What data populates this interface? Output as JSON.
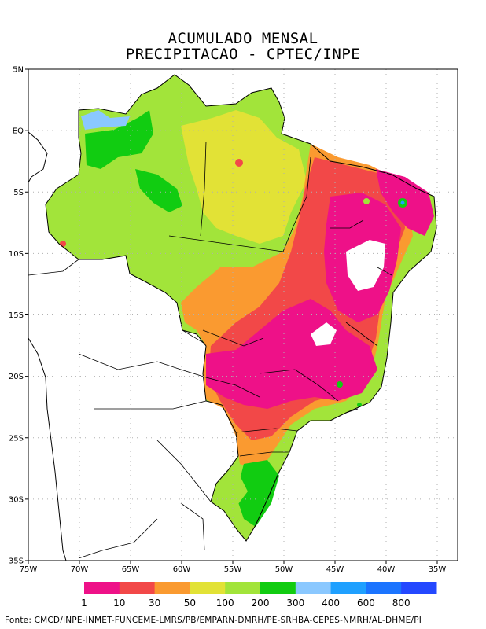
{
  "title": {
    "line1": "ACUMULADO MENSAL",
    "line2": "PRECIPITACAO - CPTEC/INPE"
  },
  "map": {
    "lon_range": [
      -75,
      -33
    ],
    "lat_range": [
      -35,
      5
    ],
    "lat_ticks": [
      {
        "value": 5,
        "label": "5N"
      },
      {
        "value": 0,
        "label": "EQ"
      },
      {
        "value": -5,
        "label": "5S"
      },
      {
        "value": -10,
        "label": "10S"
      },
      {
        "value": -15,
        "label": "15S"
      },
      {
        "value": -20,
        "label": "20S"
      },
      {
        "value": -25,
        "label": "25S"
      },
      {
        "value": -30,
        "label": "30S"
      },
      {
        "value": -35,
        "label": "35S"
      }
    ],
    "lon_ticks": [
      {
        "value": -75,
        "label": "75W"
      },
      {
        "value": -70,
        "label": "70W"
      },
      {
        "value": -65,
        "label": "65W"
      },
      {
        "value": -60,
        "label": "60W"
      },
      {
        "value": -55,
        "label": "55W"
      },
      {
        "value": -50,
        "label": "50W"
      },
      {
        "value": -45,
        "label": "45W"
      },
      {
        "value": -40,
        "label": "40W"
      },
      {
        "value": -35,
        "label": "35W"
      }
    ],
    "grid": true
  },
  "legend": {
    "unit": "",
    "colors": [
      "#ee1188",
      "#f24848",
      "#fa9a30",
      "#e2e236",
      "#a2e43a",
      "#11cc11",
      "#8ac8ff",
      "#1fa0ff",
      "#1b74ff",
      "#2448ff"
    ],
    "labels": [
      "1",
      "10",
      "30",
      "50",
      "100",
      "200",
      "300",
      "400",
      "600",
      "800"
    ]
  },
  "source": "Fonte: CMCD/INPE-INMET-FUNCEME-LMRS/PB/EMPARN-DMRH/PE-SRHBA-CEPES-NMRH/AL-DHME/PI"
}
